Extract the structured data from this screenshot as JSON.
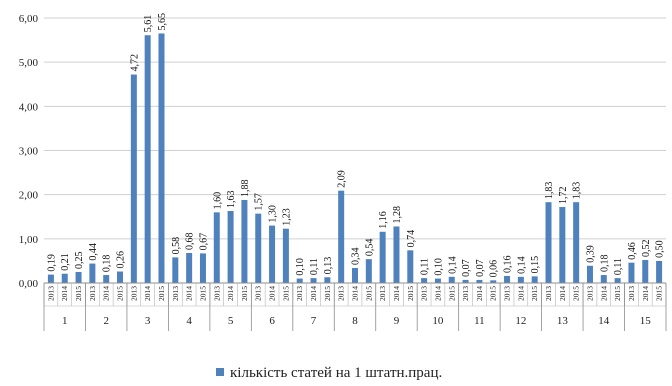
{
  "chart_data": {
    "type": "bar",
    "title": "",
    "xlabel": "",
    "ylabel": "",
    "ylim": [
      0,
      6
    ],
    "y_ticks": [
      "0,00",
      "1,00",
      "2,00",
      "3,00",
      "4,00",
      "5,00",
      "6,00"
    ],
    "grid": "horizontal",
    "legend_position": "bottom",
    "years": [
      "2013",
      "2014",
      "2015"
    ],
    "groups": [
      {
        "label": "1",
        "values": [
          0.19,
          0.21,
          0.25
        ],
        "labels": [
          "0,19",
          "0,21",
          "0,25"
        ]
      },
      {
        "label": "2",
        "values": [
          0.44,
          0.18,
          0.26
        ],
        "labels": [
          "0,44",
          "0,18",
          "0,26"
        ]
      },
      {
        "label": "3",
        "values": [
          4.72,
          5.61,
          5.65
        ],
        "labels": [
          "4,72",
          "5,61",
          "5,65"
        ]
      },
      {
        "label": "4",
        "values": [
          0.58,
          0.68,
          0.67
        ],
        "labels": [
          "0,58",
          "0,68",
          "0,67"
        ]
      },
      {
        "label": "5",
        "values": [
          1.6,
          1.63,
          1.88
        ],
        "labels": [
          "1,60",
          "1,63",
          "1,88"
        ]
      },
      {
        "label": "6",
        "values": [
          1.57,
          1.3,
          1.23
        ],
        "labels": [
          "1,57",
          "1,30",
          "1,23"
        ]
      },
      {
        "label": "7",
        "values": [
          0.1,
          0.11,
          0.13
        ],
        "labels": [
          "0,10",
          "0,11",
          "0,13"
        ]
      },
      {
        "label": "8",
        "values": [
          2.09,
          0.34,
          0.54
        ],
        "labels": [
          "2,09",
          "0,34",
          "0,54"
        ]
      },
      {
        "label": "9",
        "values": [
          1.16,
          1.28,
          0.74
        ],
        "labels": [
          "1,16",
          "1,28",
          "0,74"
        ]
      },
      {
        "label": "10",
        "values": [
          0.11,
          0.1,
          0.14
        ],
        "labels": [
          "0,11",
          "0,10",
          "0,14"
        ]
      },
      {
        "label": "11",
        "values": [
          0.07,
          0.07,
          0.06
        ],
        "labels": [
          "0,07",
          "0,07",
          "0,06"
        ]
      },
      {
        "label": "12",
        "values": [
          0.16,
          0.14,
          0.15
        ],
        "labels": [
          "0,16",
          "0,14",
          "0,15"
        ]
      },
      {
        "label": "13",
        "values": [
          1.83,
          1.72,
          1.83
        ],
        "labels": [
          "1,83",
          "1,72",
          "1,83"
        ]
      },
      {
        "label": "14",
        "values": [
          0.39,
          0.18,
          0.11
        ],
        "labels": [
          "0,39",
          "0,18",
          "0,11"
        ]
      },
      {
        "label": "15",
        "values": [
          0.46,
          0.52,
          0.5
        ],
        "labels": [
          "0,46",
          "0,52",
          "0,50"
        ]
      }
    ],
    "series": [
      {
        "name": "кількість статей на 1 штатн.прац.",
        "color": "#4f81bd"
      }
    ]
  }
}
